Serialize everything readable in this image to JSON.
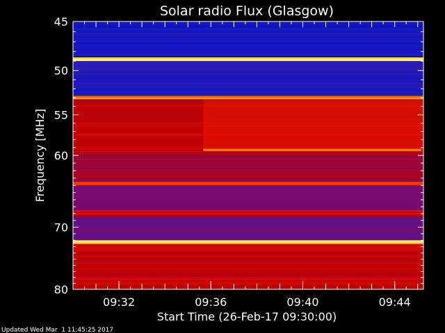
{
  "chart_data": {
    "type": "heatmap",
    "title": "Solar radio Flux (Glasgow)",
    "xlabel": "Start Time (26-Feb-17 09:30:00)",
    "ylabel": "Frequency [MHz]",
    "ylim": [
      45,
      80
    ],
    "xlim": [
      "09:30:00",
      "09:45:15"
    ],
    "y_scale": "log",
    "y_ticks": [
      45,
      50,
      55,
      60,
      70,
      80
    ],
    "x_ticks": [
      "09:32",
      "09:36",
      "09:40",
      "09:44"
    ],
    "colormap": [
      "#0010d0",
      "#3020b0",
      "#7a0a70",
      "#c00000",
      "#ff2000",
      "#ff8000",
      "#ffff80"
    ],
    "bands": [
      {
        "from": 45.0,
        "to": 45.5,
        "level": 0.05
      },
      {
        "from": 45.5,
        "to": 48.5,
        "level": 0.08
      },
      {
        "from": 48.6,
        "to": 49.0,
        "level": 0.98
      },
      {
        "from": 49.0,
        "to": 50.5,
        "level": 0.12
      },
      {
        "from": 50.5,
        "to": 52.8,
        "level": 0.1
      },
      {
        "from": 52.8,
        "to": 53.2,
        "level": 0.82
      },
      {
        "from": 53.2,
        "to": 60.0,
        "level": 0.5
      },
      {
        "from": 60.0,
        "to": 63.5,
        "level": 0.42
      },
      {
        "from": 63.5,
        "to": 64.0,
        "level": 0.72
      },
      {
        "from": 64.0,
        "to": 67.5,
        "level": 0.33
      },
      {
        "from": 67.5,
        "to": 68.3,
        "level": 0.55
      },
      {
        "from": 68.3,
        "to": 72.0,
        "level": 0.3
      },
      {
        "from": 72.0,
        "to": 72.6,
        "level": 0.95
      },
      {
        "from": 72.6,
        "to": 80.0,
        "level": 0.5
      }
    ],
    "events": [
      {
        "time": "09:35:40",
        "freq_from": 53.2,
        "freq_to": 59.3,
        "level": 0.62,
        "edge_freq": 59.3,
        "edge_level": 0.85
      }
    ]
  },
  "footer": {
    "updated": "Updated Wed Mar  1 11:45:25 2017"
  }
}
